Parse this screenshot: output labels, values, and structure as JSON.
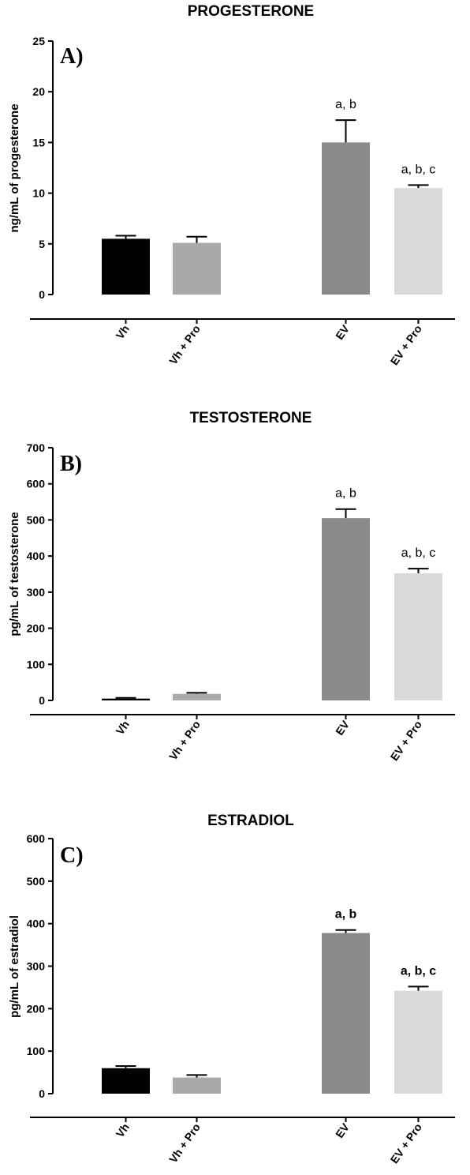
{
  "chart_data": [
    {
      "type": "bar",
      "title": "PROGESTERONE",
      "panel_label": "A)",
      "ylabel": "ng/mL of progesterone",
      "ylim": [
        0,
        25
      ],
      "yticks": [
        "0",
        "5",
        "10",
        "15",
        "20",
        "25"
      ],
      "categories": [
        "Vh",
        "Vh + Pro",
        "EV",
        "EV + Pro"
      ],
      "values": [
        5.5,
        5.1,
        15.0,
        10.5
      ],
      "errors": [
        0.3,
        0.6,
        2.2,
        0.3
      ],
      "colors": [
        "#000000",
        "#a9a9a9",
        "#8a8a8a",
        "#d9d9d9"
      ],
      "annotations": [
        "",
        "",
        "a, b",
        "a, b, c"
      ],
      "annotation_bold": false,
      "grid": false,
      "legend": "none"
    },
    {
      "type": "bar",
      "title": "TESTOSTERONE",
      "panel_label": "B)",
      "ylabel": "pg/mL of testosterone",
      "ylim": [
        0,
        700
      ],
      "yticks": [
        "0",
        "100",
        "200",
        "300",
        "400",
        "500",
        "600",
        "700"
      ],
      "categories": [
        "Vh",
        "Vh + Pro",
        "EV",
        "EV + Pro"
      ],
      "values": [
        5,
        18,
        505,
        352
      ],
      "errors": [
        2,
        3,
        25,
        13
      ],
      "colors": [
        "#000000",
        "#a9a9a9",
        "#8a8a8a",
        "#d9d9d9"
      ],
      "annotations": [
        "",
        "",
        "a, b",
        "a, b, c"
      ],
      "annotation_bold": false,
      "grid": false,
      "legend": "none"
    },
    {
      "type": "bar",
      "title": "ESTRADIOL",
      "panel_label": "C)",
      "ylabel": "pg/mL of estradiol",
      "ylim": [
        0,
        600
      ],
      "yticks": [
        "0",
        "100",
        "200",
        "300",
        "400",
        "500",
        "600"
      ],
      "categories": [
        "Vh",
        "Vh + Pro",
        "EV",
        "EV + Pro"
      ],
      "values": [
        60,
        38,
        378,
        242
      ],
      "errors": [
        5,
        6,
        7,
        10
      ],
      "colors": [
        "#000000",
        "#a9a9a9",
        "#8a8a8a",
        "#d9d9d9"
      ],
      "annotations": [
        "",
        "",
        "a, b",
        "a, b, c"
      ],
      "annotation_bold": true,
      "grid": false,
      "legend": "none"
    }
  ]
}
